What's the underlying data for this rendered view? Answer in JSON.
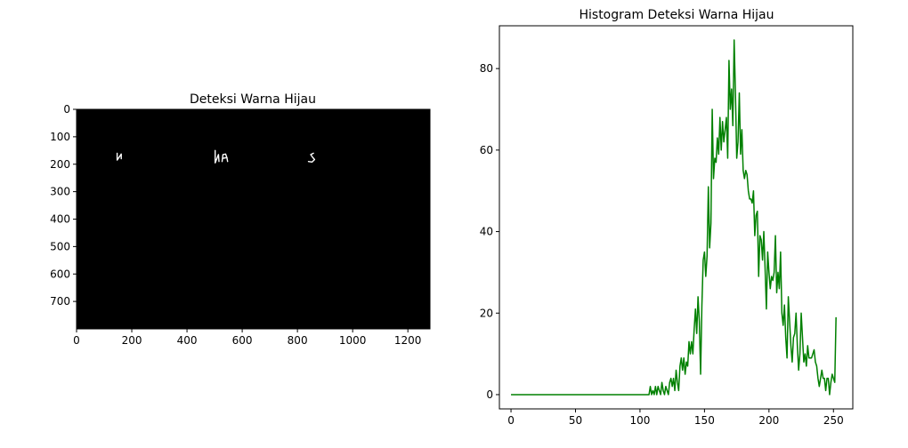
{
  "chart_data": [
    {
      "type": "image",
      "title": "Deteksi Warna Hijau",
      "xlim": [
        0,
        1280
      ],
      "ylim": [
        800,
        0
      ],
      "xticks": [
        0,
        200,
        400,
        600,
        800,
        1000,
        1200
      ],
      "yticks": [
        0,
        100,
        200,
        300,
        400,
        500,
        600,
        700
      ],
      "background": "#000000",
      "foreground": "#ffffff",
      "strokes": [
        {
          "points": [
            [
              147,
              160
            ],
            [
              147,
              185
            ],
            [
              162,
              163
            ],
            [
              162,
              180
            ]
          ]
        },
        {
          "points": [
            [
              502,
              150
            ],
            [
              502,
              195
            ],
            [
              514,
              165
            ],
            [
              516,
              190
            ]
          ]
        },
        {
          "points": [
            [
              527,
              190
            ],
            [
              530,
              165
            ],
            [
              540,
              163
            ],
            [
              545,
              178
            ],
            [
              547,
              190
            ]
          ]
        },
        {
          "points": [
            [
              531,
              178
            ],
            [
              545,
              176
            ]
          ]
        },
        {
          "points": [
            [
              858,
              160
            ],
            [
              848,
              165
            ],
            [
              855,
              175
            ],
            [
              862,
              183
            ],
            [
              853,
              192
            ],
            [
              840,
              190
            ]
          ]
        }
      ]
    },
    {
      "type": "line",
      "title": "Histogram Deteksi Warna Hijau",
      "xlim": [
        -9,
        265
      ],
      "ylim": [
        -3.5,
        90.5
      ],
      "xticks": [
        0,
        50,
        100,
        150,
        200,
        250
      ],
      "yticks": [
        0,
        20,
        40,
        60,
        80
      ],
      "series": [
        {
          "color": "#008000",
          "x_start": 0,
          "values": [
            0,
            0,
            0,
            0,
            0,
            0,
            0,
            0,
            0,
            0,
            0,
            0,
            0,
            0,
            0,
            0,
            0,
            0,
            0,
            0,
            0,
            0,
            0,
            0,
            0,
            0,
            0,
            0,
            0,
            0,
            0,
            0,
            0,
            0,
            0,
            0,
            0,
            0,
            0,
            0,
            0,
            0,
            0,
            0,
            0,
            0,
            0,
            0,
            0,
            0,
            0,
            0,
            0,
            0,
            0,
            0,
            0,
            0,
            0,
            0,
            0,
            0,
            0,
            0,
            0,
            0,
            0,
            0,
            0,
            0,
            0,
            0,
            0,
            0,
            0,
            0,
            0,
            0,
            0,
            0,
            0,
            0,
            0,
            0,
            0,
            0,
            0,
            0,
            0,
            0,
            0,
            0,
            0,
            0,
            0,
            0,
            0,
            0,
            0,
            0,
            0,
            0,
            0,
            0,
            0,
            0,
            0,
            0,
            2,
            0,
            1,
            0,
            2,
            0,
            2,
            1,
            0,
            3,
            1,
            0,
            2,
            1,
            0,
            3,
            4,
            2,
            4,
            1,
            6,
            3,
            1,
            7,
            9,
            6,
            9,
            5,
            8,
            7,
            13,
            10,
            13,
            10,
            16,
            21,
            15,
            24,
            18,
            5,
            22,
            33,
            35,
            29,
            34,
            51,
            36,
            42,
            70,
            53,
            58,
            57,
            63,
            59,
            68,
            60,
            67,
            62,
            65,
            68,
            58,
            82,
            70,
            75,
            66,
            87,
            74,
            58,
            62,
            74,
            59,
            65,
            55,
            53,
            55,
            54,
            50,
            48,
            48,
            47,
            50,
            39,
            44,
            45,
            29,
            39,
            38,
            33,
            40,
            31,
            21,
            35,
            30,
            26,
            29,
            28,
            30,
            39,
            25,
            30,
            26,
            35,
            20,
            17,
            22,
            14,
            9,
            24,
            18,
            12,
            8,
            14,
            15,
            20,
            12,
            6,
            10,
            20,
            14,
            8,
            10,
            7,
            12,
            9,
            9,
            9,
            10,
            11,
            8,
            7,
            4,
            2,
            4,
            6,
            4,
            4,
            1,
            4,
            4,
            0,
            3,
            5,
            4,
            3,
            19
          ]
        }
      ]
    }
  ]
}
